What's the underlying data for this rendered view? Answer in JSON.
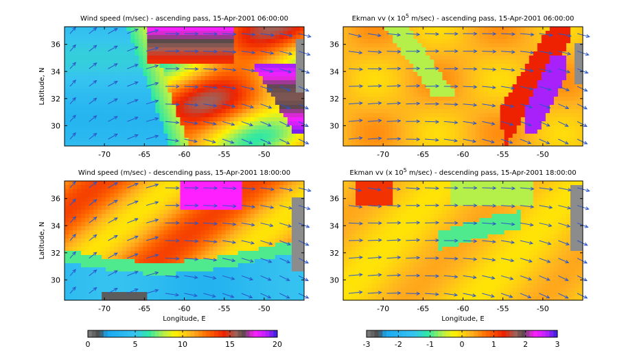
{
  "chart_data": [
    {
      "type": "heatmap",
      "title": "Wind speed (m/sec) - ascending pass, 15-Apr-2001 06:00:00",
      "xlabel": "",
      "ylabel": "Latitude, N",
      "xticks": [
        "-70",
        "-65",
        "-60",
        "-55",
        "-50"
      ],
      "yticks": [
        "30",
        "32",
        "34",
        "36"
      ],
      "xlim": [
        -75,
        -45
      ],
      "ylim": [
        28.5,
        37.3
      ],
      "field": "wind_speed",
      "overlay": "wind vectors"
    },
    {
      "type": "heatmap",
      "title": "Ekman vv (x 10^5 m/sec) - ascending pass, 15-Apr-2001 06:00:00",
      "xlabel": "",
      "ylabel": "",
      "xticks": [
        "-70",
        "-65",
        "-60",
        "-55",
        "-50"
      ],
      "yticks": [
        "30",
        "32",
        "34",
        "36"
      ],
      "xlim": [
        -75,
        -45
      ],
      "ylim": [
        28.5,
        37.3
      ],
      "field": "ekman_vv",
      "overlay": "wind vectors"
    },
    {
      "type": "heatmap",
      "title": "Wind speed (m/sec) - descending pass, 15-Apr-2001 18:00:00",
      "xlabel": "Longitude, E",
      "ylabel": "Latitude, N",
      "xticks": [
        "-70",
        "-65",
        "-60",
        "-55",
        "-50"
      ],
      "yticks": [
        "30",
        "32",
        "34",
        "36"
      ],
      "xlim": [
        -75,
        -45
      ],
      "ylim": [
        28.5,
        37.3
      ],
      "field": "wind_speed",
      "overlay": "wind vectors"
    },
    {
      "type": "heatmap",
      "title": "Ekman vv (x 10^5 m/sec) - descending pass, 15-Apr-2001 18:00:00",
      "xlabel": "Longitude, E",
      "ylabel": "",
      "xticks": [
        "-70",
        "-65",
        "-60",
        "-55",
        "-50"
      ],
      "yticks": [
        "30",
        "32",
        "34",
        "36"
      ],
      "xlim": [
        -75,
        -45
      ],
      "ylim": [
        28.5,
        37.3
      ],
      "field": "ekman_vv",
      "overlay": "wind vectors"
    }
  ],
  "colorbars": [
    {
      "ticks": [
        "0",
        "5",
        "10",
        "15",
        "20"
      ],
      "range": [
        0,
        20
      ]
    },
    {
      "ticks": [
        "-3",
        "-2",
        "-1",
        "0",
        "1",
        "2",
        "3"
      ],
      "range": [
        -3,
        3
      ]
    }
  ],
  "colors": {
    "vector": "#2a55c8",
    "land": "#8c8c8c",
    "axis": "#000000"
  }
}
